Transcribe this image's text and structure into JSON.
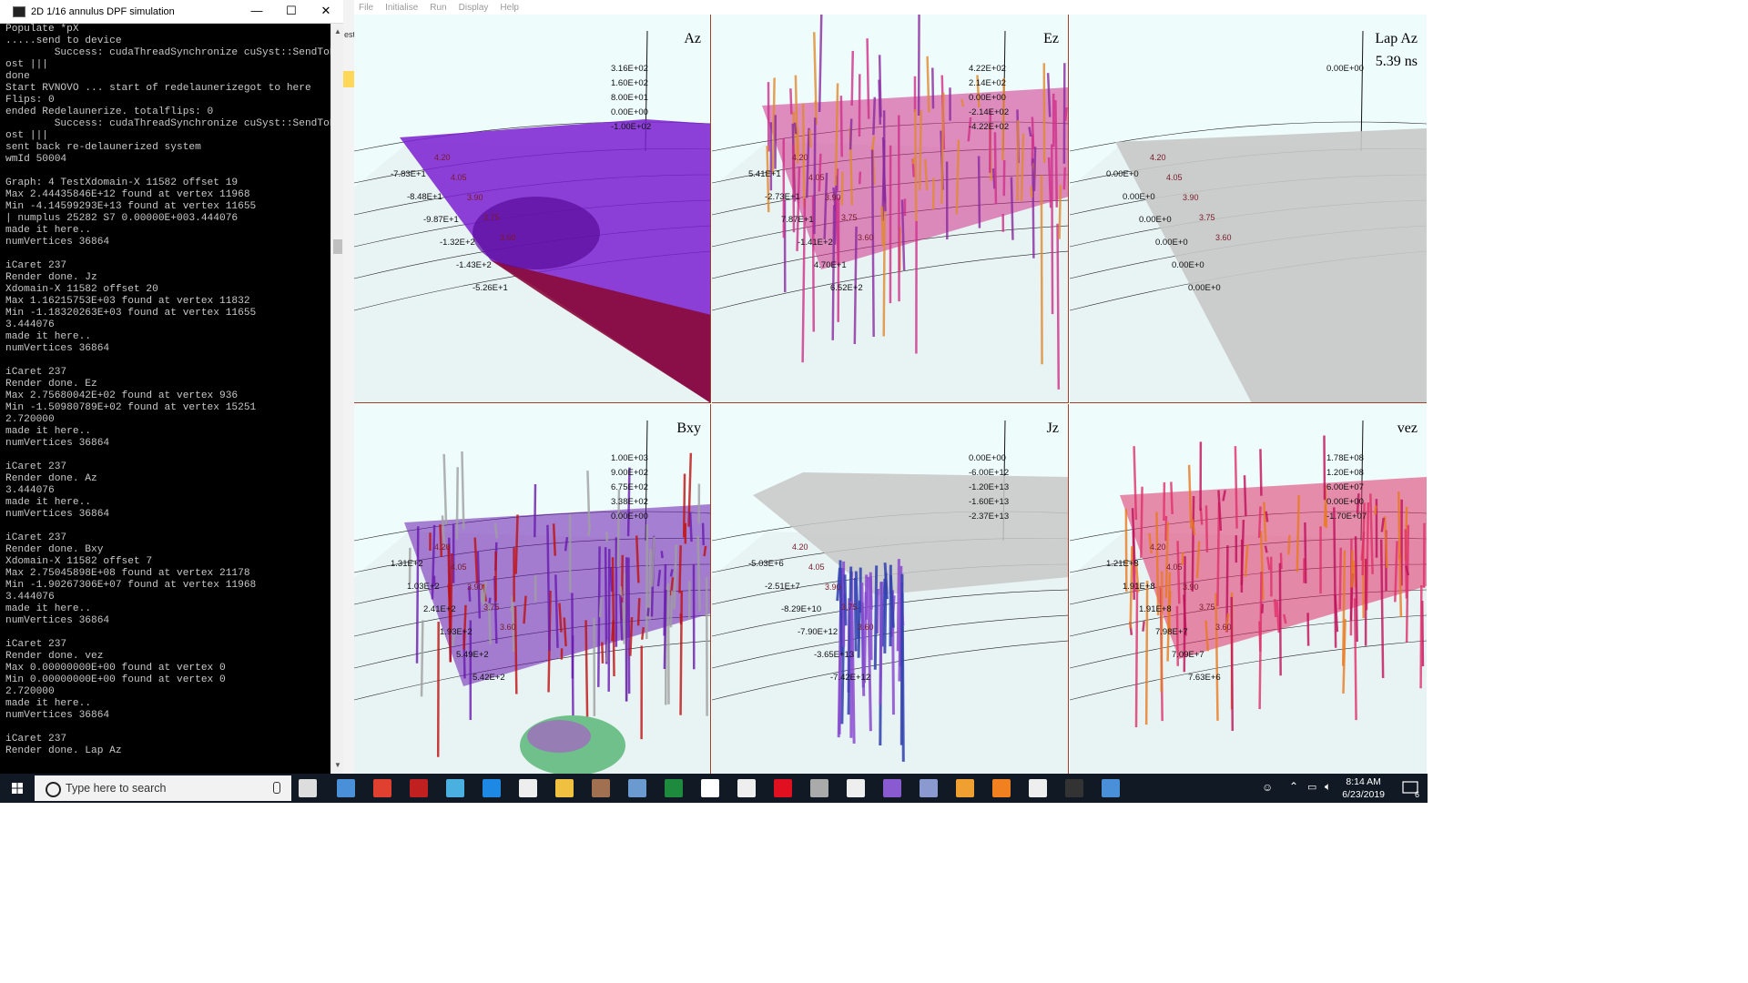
{
  "console": {
    "title": "2D 1/16 annulus DPF simulation",
    "window_buttons": {
      "minimize": "—",
      "maximize": "☐",
      "close": "✕"
    },
    "lines": [
      "Populate *pX",
      ".....send to device",
      "        Success: cudaThreadSynchronize cuSyst::SendToH",
      "ost |||",
      "done",
      "Start RVNOVO ... start of redelaunerizegot to here",
      "Flips: 0",
      "ended Redelaunerize. totalflips: 0",
      "        Success: cudaThreadSynchronize cuSyst::SendToH",
      "ost |||",
      "sent back re-delaunerized system",
      "wmId 50004",
      "",
      "Graph: 4 TestXdomain-X 11582 offset 19",
      "Max 2.44435846E+12 found at vertex 11968",
      "Min -4.14599293E+13 found at vertex 11655",
      "| numplus 25282 S7 0.00000E+003.444076",
      "made it here..",
      "numVertices 36864",
      "",
      "iCaret 237",
      "Render done. Jz",
      "Xdomain-X 11582 offset 20",
      "Max 1.16215753E+03 found at vertex 11832",
      "Min -1.18320263E+03 found at vertex 11655",
      "3.444076",
      "made it here..",
      "numVertices 36864",
      "",
      "iCaret 237",
      "Render done. Ez",
      "Max 2.75680042E+02 found at vertex 936",
      "Min -1.50980789E+02 found at vertex 15251",
      "2.720000",
      "made it here..",
      "numVertices 36864",
      "",
      "iCaret 237",
      "Render done. Az",
      "3.444076",
      "made it here..",
      "numVertices 36864",
      "",
      "iCaret 237",
      "Render done. Bxy",
      "Xdomain-X 11582 offset 7",
      "Max 2.75045898E+08 found at vertex 21178",
      "Min -1.90267306E+07 found at vertex 11968",
      "3.444076",
      "made it here..",
      "numVertices 36864",
      "",
      "iCaret 237",
      "Render done. vez",
      "Max 0.00000000E+00 found at vertex 0",
      "Min 0.00000000E+00 found at vertex 0",
      "2.720000",
      "made it here..",
      "numVertices 36864",
      "",
      "iCaret 237",
      "Render done. Lap Az"
    ],
    "behind_window_text": "est"
  },
  "app": {
    "menu": [
      "File",
      "Initialise",
      "Run",
      "Display",
      "Help"
    ],
    "panels": [
      {
        "id": "az",
        "label": "Az",
        "colors": [
          "#7a1fd0",
          "#5a0b9a",
          "#8a0a3a"
        ],
        "zlabels": [
          "3.16E+02",
          "1.60E+02",
          "8.00E+01",
          "0.00E+00",
          "-1.00E+02"
        ],
        "ylabels": [
          "-7.83E+1",
          "-8.48E+1",
          "-9.87E+1",
          "-1.32E+2",
          "-1.43E+2",
          "-5.26E+1"
        ],
        "xlabels": [
          "4.20",
          "4.05",
          "3.90",
          "3.75",
          "3.60"
        ]
      },
      {
        "id": "ez",
        "label": "Ez",
        "colors": [
          "#d0308a",
          "#8a2aa0",
          "#e08a30"
        ],
        "zlabels": [
          "4.22E+02",
          "2.14E+02",
          "0.00E+00",
          "-2.14E+02",
          "-4.22E+02"
        ],
        "ylabels": [
          "5.41E+1",
          "-2.73E+1",
          "7.87E+1",
          "-1.41E+2",
          "4.70E+1",
          "6.52E+2"
        ],
        "xlabels": [
          "4.20",
          "4.05",
          "3.90",
          "3.75",
          "3.60"
        ]
      },
      {
        "id": "lapaz",
        "label": "Lap Az",
        "time": "5.39 ns",
        "colors": [
          "#c8c8c8",
          "#b0b0b0",
          "#e8e8e8"
        ],
        "zlabels": [
          "0.00E+00"
        ],
        "ylabels": [
          "0.00E+0",
          "0.00E+0",
          "0.00E+0",
          "0.00E+0",
          "0.00E+0",
          "0.00E+0"
        ],
        "xlabels": [
          "4.20",
          "4.05",
          "3.90",
          "3.75",
          "3.60"
        ]
      },
      {
        "id": "bxy",
        "label": "Bxy",
        "colors": [
          "#6a1ab0",
          "#c01010",
          "#a0a0a0"
        ],
        "zlabels": [
          "1.00E+03",
          "9.00E+02",
          "6.75E+02",
          "3.38E+02",
          "0.00E+00"
        ],
        "ylabels": [
          "1.31E+2",
          "1.03E+2",
          "2.41E+2",
          "1.93E+2",
          "5.49E+2",
          "5.42E+2"
        ],
        "xlabels": [
          "4.20",
          "4.05",
          "3.90",
          "3.75",
          "3.60"
        ]
      },
      {
        "id": "jz",
        "label": "Jz",
        "colors": [
          "#c8c8c8",
          "#8a4ad0",
          "#3040b0"
        ],
        "zlabels": [
          "0.00E+00",
          "-6.00E+12",
          "-1.20E+13",
          "-1.60E+13",
          "-2.37E+13"
        ],
        "ylabels": [
          "-5.03E+6",
          "-2.51E+7",
          "-8.29E+10",
          "-7.90E+12",
          "-3.65E+13",
          "-7.42E+12"
        ],
        "xlabels": [
          "4.20",
          "4.05",
          "3.90",
          "3.75",
          "3.60"
        ]
      },
      {
        "id": "vez",
        "label": "vez",
        "colors": [
          "#e0306a",
          "#c0105a",
          "#e87a20"
        ],
        "zlabels": [
          "1.78E+08",
          "1.20E+08",
          "6.00E+07",
          "0.00E+00",
          "-1.70E+07"
        ],
        "ylabels": [
          "1.21E+8",
          "1.91E+8",
          "1.91E+8",
          "7.98E+7",
          "7.09E+7",
          "7.63E+6"
        ],
        "xlabels": [
          "4.20",
          "4.05",
          "3.90",
          "3.75",
          "3.60"
        ]
      }
    ]
  },
  "taskbar": {
    "search_placeholder": "Type here to search",
    "time": "8:14 AM",
    "date": "6/23/2019",
    "notification_count": "6"
  }
}
